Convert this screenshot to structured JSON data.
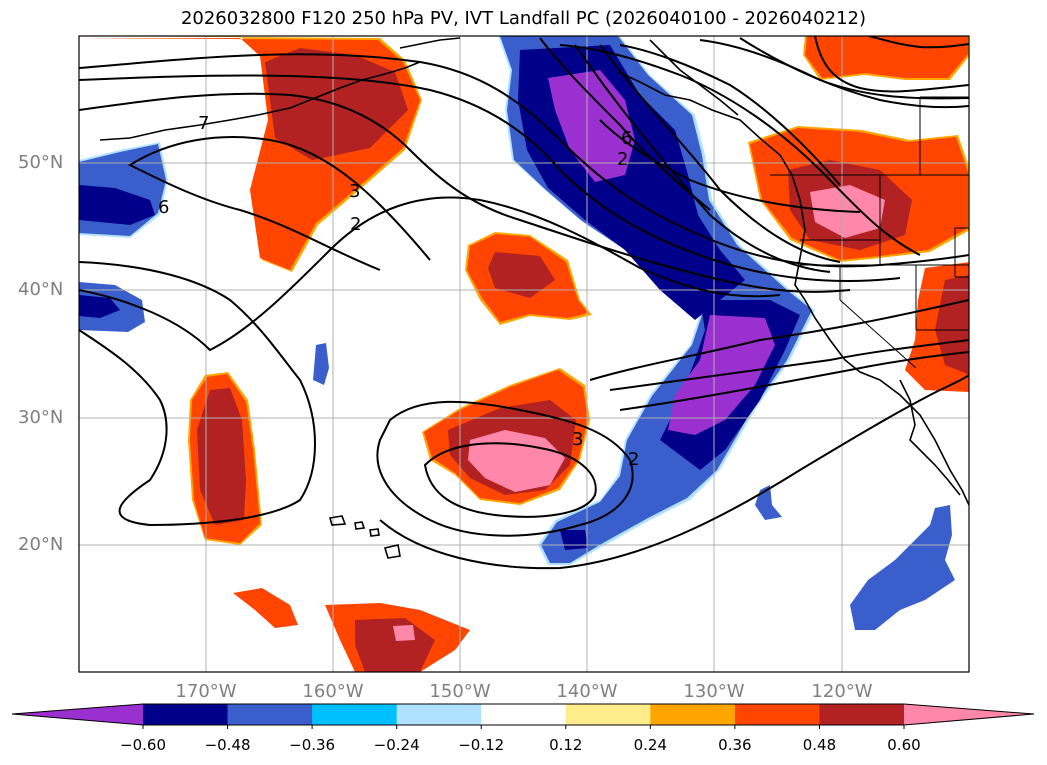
{
  "title": "2026032800 F120 250 hPa PV, IVT Landfall PC (2026040100 - 2026040212)",
  "map": {
    "lat_ticks": [
      "50°N",
      "40°N",
      "30°N",
      "20°N"
    ],
    "lon_ticks": [
      "170°W",
      "160°W",
      "150°W",
      "140°W",
      "130°W",
      "120°W"
    ],
    "contour_labels": [
      "7",
      "6",
      "3",
      "2",
      "6",
      "2",
      "3",
      "2"
    ]
  },
  "colorbar": {
    "levels": [
      "−0.60",
      "−0.48",
      "−0.36",
      "−0.24",
      "−0.12",
      "0.12",
      "0.24",
      "0.36",
      "0.48",
      "0.60"
    ],
    "colors": [
      "#9b30d0",
      "#00008b",
      "#3a5fcd",
      "#00bfff",
      "#b0e2ff",
      "#ffffff",
      "#ffec8b",
      "#ffa500",
      "#ff4500",
      "#b22222",
      "#ff88aa"
    ]
  },
  "colors": {
    "purple": "#9b30d0",
    "navy": "#00008b",
    "blue": "#3a5fcd",
    "sky": "#00bfff",
    "light_blue": "#b0e2ff",
    "yellow": "#ffec8b",
    "orange": "#ffa500",
    "red_orange": "#ff4500",
    "firebrick": "#b22222",
    "pink": "#ff88aa",
    "grid": "#b0b0b0",
    "tick_text": "#808080"
  }
}
